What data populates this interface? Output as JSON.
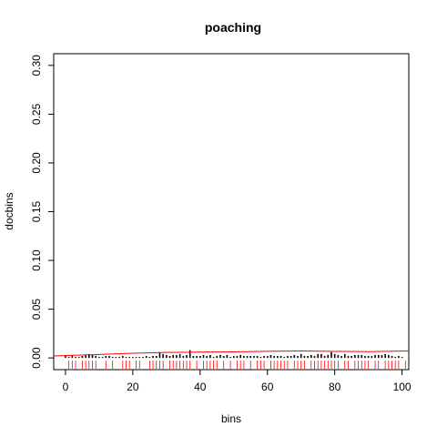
{
  "chart_data": {
    "type": "bar",
    "title": "poaching",
    "xlabel": "bins",
    "ylabel": "docbins",
    "xlim": [
      -3.5,
      102
    ],
    "ylim": [
      -0.012,
      0.312
    ],
    "x_ticks": [
      0,
      20,
      40,
      60,
      80,
      100
    ],
    "x_tick_labels": [
      "0",
      "20",
      "40",
      "60",
      "80",
      "100"
    ],
    "y_ticks": [
      0.0,
      0.05,
      0.1,
      0.15,
      0.2,
      0.25,
      0.3
    ],
    "y_tick_labels": [
      "0.00",
      "0.05",
      "0.10",
      "0.15",
      "0.20",
      "0.25",
      "0.30"
    ],
    "bars": {
      "color": "#000000",
      "x": [
        0,
        1,
        2,
        3,
        4,
        5,
        6,
        7,
        8,
        9,
        10,
        11,
        12,
        13,
        14,
        15,
        16,
        17,
        18,
        19,
        20,
        21,
        22,
        23,
        24,
        25,
        26,
        27,
        28,
        29,
        30,
        31,
        32,
        33,
        34,
        35,
        36,
        37,
        38,
        39,
        40,
        41,
        42,
        43,
        44,
        45,
        46,
        47,
        48,
        49,
        50,
        51,
        52,
        53,
        54,
        55,
        56,
        57,
        58,
        59,
        60,
        61,
        62,
        63,
        64,
        65,
        66,
        67,
        68,
        69,
        70,
        71,
        72,
        73,
        74,
        75,
        76,
        77,
        78,
        79,
        80,
        81,
        82,
        83,
        84,
        85,
        86,
        87,
        88,
        89,
        90,
        91,
        92,
        93,
        94,
        95,
        96,
        97,
        98,
        99,
        100
      ],
      "values": [
        0.002,
        0.001,
        0.003,
        0.001,
        0.001,
        0.002,
        0.003,
        0.004,
        0.003,
        0.002,
        0.001,
        0.001,
        0.002,
        0.002,
        0.001,
        0.001,
        0.001,
        0.002,
        0.001,
        0.001,
        0.001,
        0.001,
        0.001,
        0.001,
        0.002,
        0.001,
        0.002,
        0.002,
        0.006,
        0.004,
        0.003,
        0.002,
        0.003,
        0.003,
        0.004,
        0.002,
        0.003,
        0.008,
        0.002,
        0.002,
        0.002,
        0.003,
        0.002,
        0.003,
        0.001,
        0.002,
        0.003,
        0.002,
        0.003,
        0.001,
        0.002,
        0.002,
        0.003,
        0.002,
        0.002,
        0.002,
        0.002,
        0.002,
        0.001,
        0.002,
        0.002,
        0.003,
        0.002,
        0.002,
        0.002,
        0.001,
        0.002,
        0.002,
        0.003,
        0.002,
        0.004,
        0.002,
        0.002,
        0.003,
        0.002,
        0.004,
        0.004,
        0.002,
        0.003,
        0.006,
        0.004,
        0.003,
        0.002,
        0.004,
        0.002,
        0.002,
        0.003,
        0.003,
        0.003,
        0.002,
        0.002,
        0.002,
        0.003,
        0.003,
        0.003,
        0.004,
        0.003,
        0.002,
        0.001,
        0.002,
        0.001
      ]
    },
    "rug": {
      "color": "#ff0000",
      "x": [
        1,
        2,
        3,
        5,
        6,
        7,
        8,
        9,
        12,
        14,
        17,
        18,
        19,
        21,
        22,
        25,
        26,
        27,
        28,
        29,
        31,
        32,
        33,
        34,
        35,
        36,
        37,
        39,
        41,
        42,
        43,
        44,
        45,
        47,
        49,
        51,
        52,
        53,
        55,
        57,
        58,
        59,
        61,
        62,
        63,
        64,
        65,
        66,
        68,
        69,
        70,
        71,
        73,
        74,
        75,
        76,
        77,
        78,
        79,
        80,
        81,
        83,
        84,
        86,
        87,
        88,
        89,
        90,
        92,
        93,
        95,
        96,
        97,
        98,
        99,
        101
      ]
    },
    "smooth_line": {
      "color": "#ff0000",
      "x": [
        -3.5,
        10,
        20,
        30,
        40,
        50,
        60,
        70,
        80,
        90,
        102
      ],
      "y": [
        0.002,
        0.0035,
        0.0048,
        0.0056,
        0.006,
        0.0062,
        0.0068,
        0.0071,
        0.0067,
        0.0065,
        0.0072
      ]
    }
  }
}
